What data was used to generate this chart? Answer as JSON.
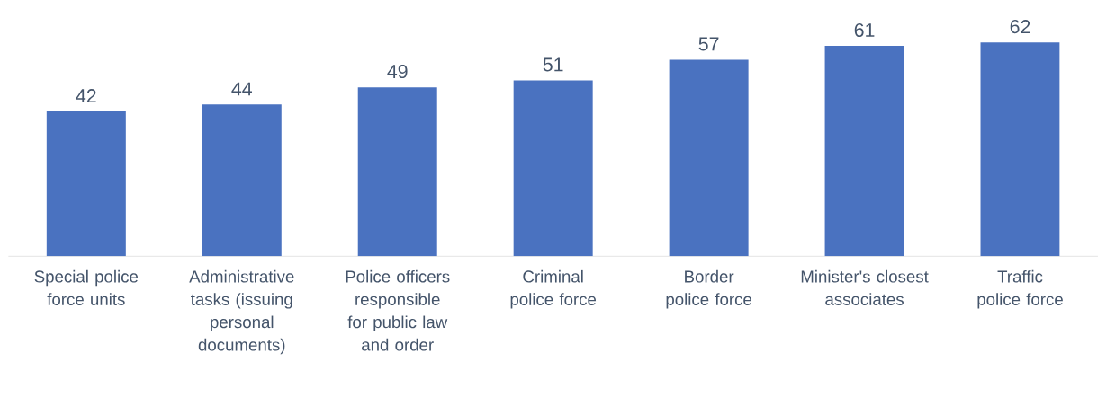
{
  "chart_data": {
    "type": "bar",
    "categories": [
      "Special police force units",
      "Administrative tasks (issuing personal documents)",
      "Police officers responsible for public law and order",
      "Criminal police force",
      "Border police force",
      "Minister's closest associates",
      "Traffic police force"
    ],
    "values": [
      42,
      44,
      49,
      51,
      57,
      61,
      62
    ],
    "color": "#4a72c0",
    "data_labels": true
  }
}
